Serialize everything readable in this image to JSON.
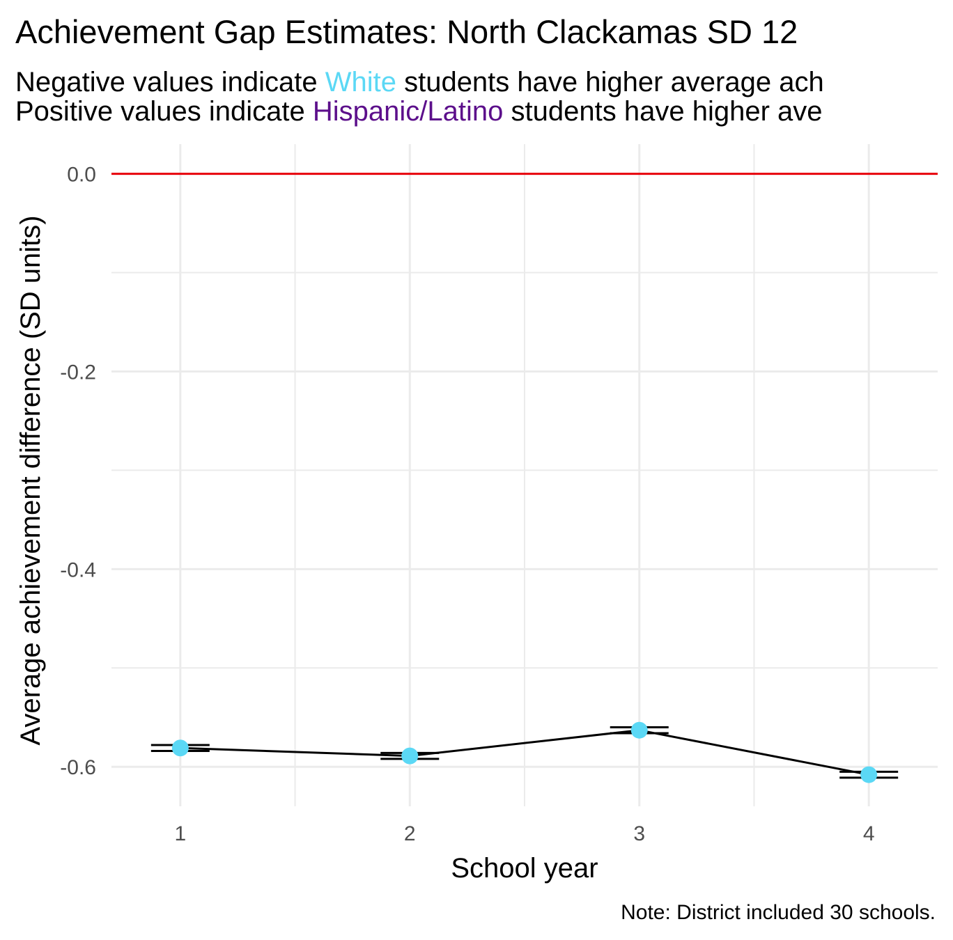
{
  "title": "Achievement Gap Estimates: North Clackamas SD 12",
  "subtitle": {
    "line1": {
      "pre": "Negative values indicate ",
      "highlight": "White",
      "post": " students have higher average ach"
    },
    "line2": {
      "pre": "Positive values indicate ",
      "highlight": "Hispanic/Latino",
      "post": " students have higher ave"
    }
  },
  "colors": {
    "white_group": "#5bd8f5",
    "hispanic_group": "#5c0f8b",
    "reference_line": "#e8000b",
    "series_line": "#000000",
    "grid": "#ebebeb"
  },
  "caption": "Note: District included 30 schools.",
  "chart_data": {
    "type": "line",
    "title": "Achievement Gap Estimates: North Clackamas SD 12",
    "xlabel": "School year",
    "ylabel": "Average achievement difference (SD units)",
    "x": [
      1,
      2,
      3,
      4
    ],
    "x_tick_labels": [
      "1",
      "2",
      "3",
      "4"
    ],
    "xlim": [
      0.7,
      4.3
    ],
    "y_ticks": [
      0.0,
      -0.2,
      -0.4,
      -0.6
    ],
    "y_tick_labels": [
      "0.0",
      "-0.2",
      "-0.4",
      "-0.6"
    ],
    "ylim": [
      -0.64,
      0.03
    ],
    "reference_line_y": 0.0,
    "series": [
      {
        "values": [
          -0.581,
          -0.589,
          -0.563,
          -0.608
        ],
        "error_low": [
          -0.584,
          -0.592,
          -0.566,
          -0.611
        ],
        "error_high": [
          -0.578,
          -0.586,
          -0.56,
          -0.605
        ],
        "point_color": "#5bd8f5"
      }
    ],
    "grid": true,
    "legend": "none"
  }
}
